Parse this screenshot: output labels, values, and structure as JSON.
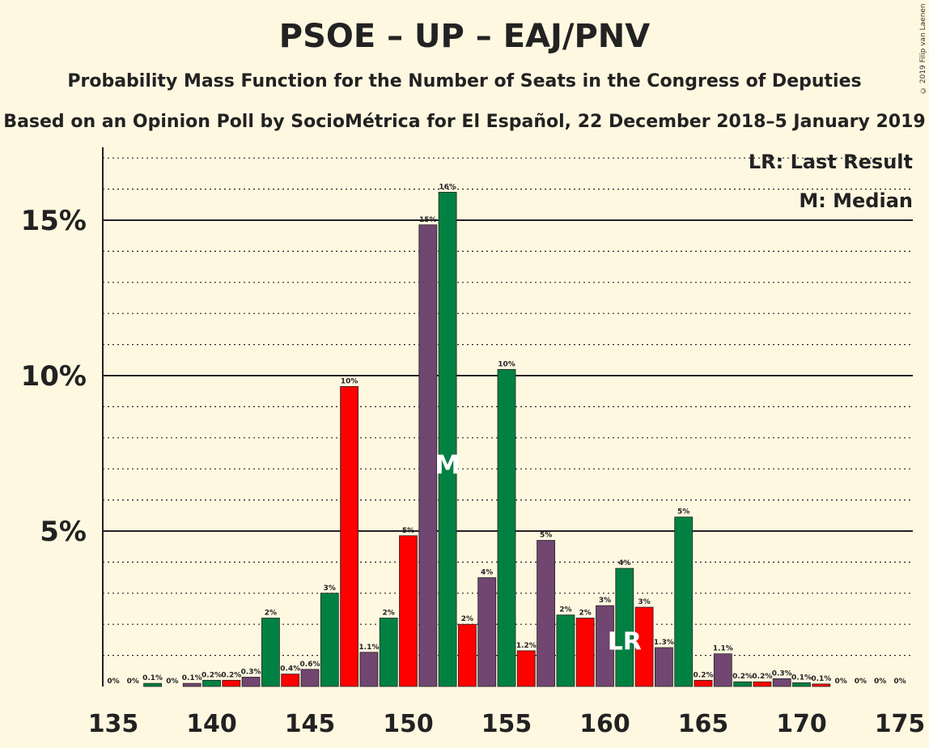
{
  "title": "PSOE – UP – EAJ/PNV",
  "subtitle": "Probability Mass Function for the Number of Seats in the Congress of Deputies",
  "subtitle2": "Based on an Opinion Poll by SocioMétrica for El Español, 22 December 2018–5 January 2019",
  "copyright": "© 2019 Filip van Laenen",
  "legend": {
    "last_result": "LR: Last Result",
    "median": "M: Median"
  },
  "colors": {
    "background": "#fff8e1",
    "green": "#008142",
    "purple": "#714670",
    "red": "#ff0000"
  },
  "chart_data": {
    "type": "bar",
    "x": [
      135,
      136,
      137,
      138,
      139,
      140,
      141,
      142,
      143,
      144,
      145,
      146,
      147,
      148,
      149,
      150,
      151,
      152,
      153,
      154,
      155,
      156,
      157,
      158,
      159,
      160,
      161,
      162,
      163,
      164,
      165,
      166,
      167,
      168,
      169,
      170,
      171,
      172,
      173,
      174,
      175
    ],
    "values": [
      0,
      0,
      0.1,
      0,
      0.1,
      0.2,
      0.2,
      0.3,
      2.2,
      0.4,
      0.55,
      3.0,
      9.65,
      1.1,
      2.2,
      4.85,
      14.85,
      15.9,
      2.0,
      3.5,
      10.2,
      1.15,
      4.7,
      2.3,
      2.2,
      2.6,
      3.8,
      2.55,
      1.25,
      5.45,
      0.2,
      1.05,
      0.15,
      0.15,
      0.25,
      0.12,
      0.08,
      0,
      0,
      0,
      0
    ],
    "value_labels": [
      "0%",
      "0%",
      "0.1%",
      "0%",
      "0.1%",
      "0.2%",
      "0.2%",
      "0.3%",
      "2%",
      "0.4%",
      "0.6%",
      "3%",
      "10%",
      "1.1%",
      "2%",
      "5%",
      "15%",
      "16%",
      "2%",
      "4%",
      "10%",
      "1.2%",
      "5%",
      "2%",
      "2%",
      "3%",
      "4%",
      "3%",
      "1.3%",
      "5%",
      "0.2%",
      "1.1%",
      "0.2%",
      "0.2%",
      "0.3%",
      "0.1%",
      "0.1%",
      "0%",
      "0%",
      "0%",
      "0%"
    ],
    "bar_colors": [
      "green",
      "purple",
      "green",
      "red",
      "purple",
      "green",
      "red",
      "purple",
      "green",
      "red",
      "purple",
      "green",
      "red",
      "purple",
      "green",
      "red",
      "purple",
      "green",
      "red",
      "purple",
      "green",
      "red",
      "purple",
      "green",
      "red",
      "purple",
      "green",
      "red",
      "purple",
      "green",
      "red",
      "purple",
      "green",
      "red",
      "purple",
      "green",
      "red",
      "purple",
      "green",
      "red",
      "purple"
    ],
    "x_ticks": [
      "135",
      "140",
      "145",
      "150",
      "155",
      "160",
      "165",
      "170",
      "175"
    ],
    "y_ticks": [
      "5%",
      "10%",
      "15%"
    ],
    "ylim": [
      0,
      17
    ],
    "median_seat": 152,
    "median_marker": "M",
    "last_result_seat": 161,
    "last_result_marker": "LR",
    "grid": "major solid at 5% steps, minor dotted at 1% steps",
    "legend_position": "top-right"
  }
}
